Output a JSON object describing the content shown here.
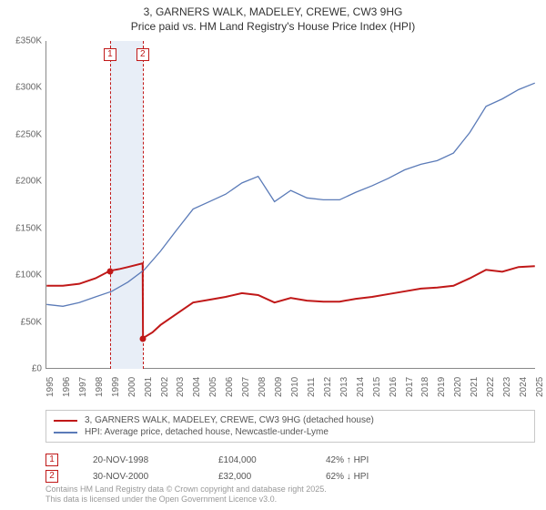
{
  "title_line1": "3, GARNERS WALK, MADELEY, CREWE, CW3 9HG",
  "title_line2": "Price paid vs. HM Land Registry's House Price Index (HPI)",
  "chart": {
    "type": "line",
    "background_color": "#ffffff",
    "highlight_color": "#e8eef7",
    "xlim": [
      1995,
      2025
    ],
    "ylim": [
      0,
      350000
    ],
    "ytick_step": 50000,
    "y_ticks": [
      "£0",
      "£50K",
      "£100K",
      "£150K",
      "£200K",
      "£250K",
      "£300K",
      "£350K"
    ],
    "x_ticks": [
      1995,
      1996,
      1997,
      1998,
      1999,
      2000,
      2001,
      2002,
      2003,
      2004,
      2005,
      2006,
      2007,
      2008,
      2009,
      2010,
      2011,
      2012,
      2013,
      2014,
      2015,
      2016,
      2017,
      2018,
      2019,
      2020,
      2021,
      2022,
      2023,
      2024,
      2025
    ],
    "series": [
      {
        "name": "3, GARNERS WALK, MADELEY, CREWE, CW3 9HG (detached house)",
        "color": "#c01818",
        "line_width": 2,
        "data": [
          [
            1995,
            88000
          ],
          [
            1996,
            88000
          ],
          [
            1997,
            90000
          ],
          [
            1998,
            96000
          ],
          [
            1998.9,
            104000
          ],
          [
            1999.5,
            106000
          ],
          [
            2000,
            108000
          ],
          [
            2000.9,
            112000
          ],
          [
            2000.92,
            32000
          ],
          [
            2001.5,
            38000
          ],
          [
            2002,
            46000
          ],
          [
            2003,
            58000
          ],
          [
            2004,
            70000
          ],
          [
            2005,
            73000
          ],
          [
            2006,
            76000
          ],
          [
            2007,
            80000
          ],
          [
            2008,
            78000
          ],
          [
            2009,
            70000
          ],
          [
            2010,
            75000
          ],
          [
            2011,
            72000
          ],
          [
            2012,
            71000
          ],
          [
            2013,
            71000
          ],
          [
            2014,
            74000
          ],
          [
            2015,
            76000
          ],
          [
            2016,
            79000
          ],
          [
            2017,
            82000
          ],
          [
            2018,
            85000
          ],
          [
            2019,
            86000
          ],
          [
            2020,
            88000
          ],
          [
            2021,
            96000
          ],
          [
            2022,
            105000
          ],
          [
            2023,
            103000
          ],
          [
            2024,
            108000
          ],
          [
            2025,
            109000
          ]
        ]
      },
      {
        "name": "HPI: Average price, detached house, Newcastle-under-Lyme",
        "color": "#5b7bb8",
        "line_width": 1.3,
        "data": [
          [
            1995,
            68000
          ],
          [
            1996,
            66000
          ],
          [
            1997,
            70000
          ],
          [
            1998,
            76000
          ],
          [
            1999,
            82000
          ],
          [
            2000,
            92000
          ],
          [
            2001,
            105000
          ],
          [
            2002,
            125000
          ],
          [
            2003,
            148000
          ],
          [
            2004,
            170000
          ],
          [
            2005,
            178000
          ],
          [
            2006,
            186000
          ],
          [
            2007,
            198000
          ],
          [
            2008,
            205000
          ],
          [
            2009,
            178000
          ],
          [
            2010,
            190000
          ],
          [
            2011,
            182000
          ],
          [
            2012,
            180000
          ],
          [
            2013,
            180000
          ],
          [
            2014,
            188000
          ],
          [
            2015,
            195000
          ],
          [
            2016,
            203000
          ],
          [
            2017,
            212000
          ],
          [
            2018,
            218000
          ],
          [
            2019,
            222000
          ],
          [
            2020,
            230000
          ],
          [
            2021,
            252000
          ],
          [
            2022,
            280000
          ],
          [
            2023,
            288000
          ],
          [
            2024,
            298000
          ],
          [
            2025,
            305000
          ]
        ]
      }
    ],
    "markers": [
      {
        "id": "1",
        "x": 1998.9,
        "y": 104000,
        "color": "#c01818",
        "band_start": 1998.9,
        "band_end": 2000.9
      },
      {
        "id": "2",
        "x": 2000.9,
        "y": 32000,
        "color": "#c01818"
      }
    ]
  },
  "legend": {
    "rows": [
      {
        "swatch": "#c01818",
        "label": "3, GARNERS WALK, MADELEY, CREWE, CW3 9HG (detached house)"
      },
      {
        "swatch": "#5b7bb8",
        "label": "HPI: Average price, detached house, Newcastle-under-Lyme"
      }
    ]
  },
  "data_rows": [
    {
      "id": "1",
      "color": "#c01818",
      "date": "20-NOV-1998",
      "price": "£104,000",
      "delta": "42% ↑ HPI"
    },
    {
      "id": "2",
      "color": "#c01818",
      "date": "30-NOV-2000",
      "price": "£32,000",
      "delta": "62% ↓ HPI"
    }
  ],
  "footer_line1": "Contains HM Land Registry data © Crown copyright and database right 2025.",
  "footer_line2": "This data is licensed under the Open Government Licence v3.0."
}
